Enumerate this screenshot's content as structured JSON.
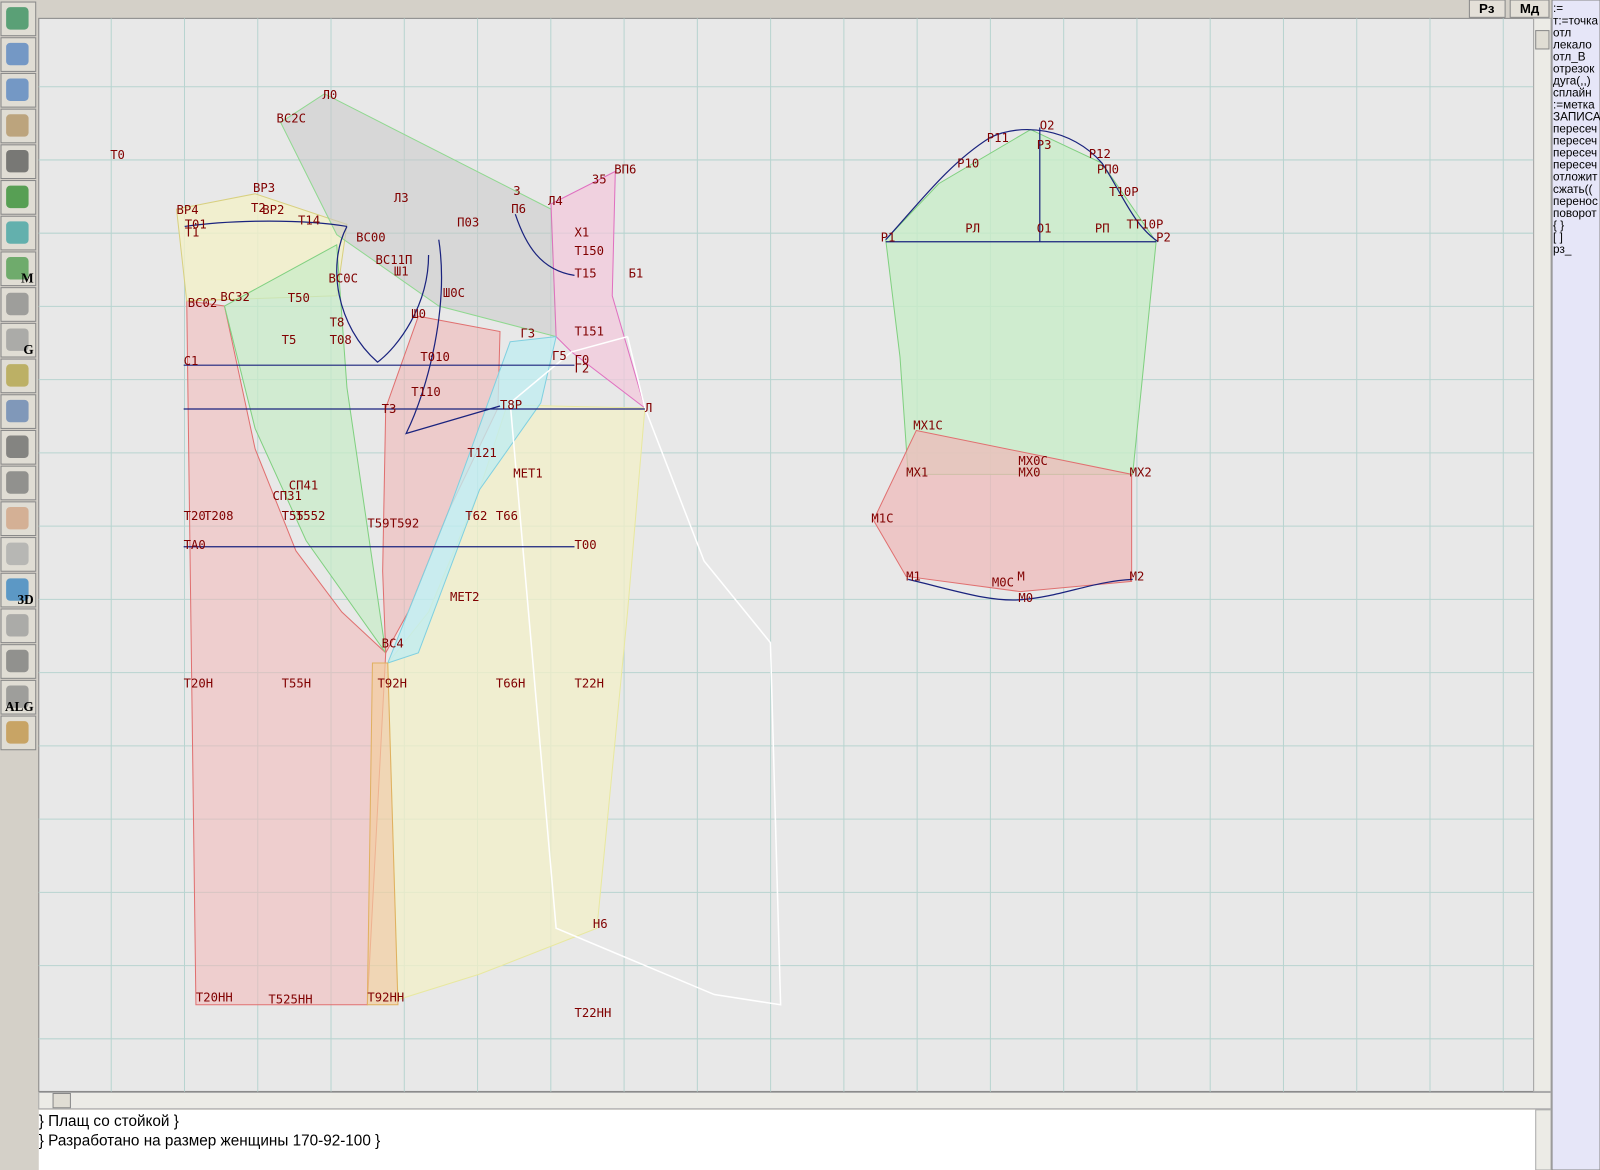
{
  "toolbar": {
    "icon_labels": [
      "M",
      "G",
      "3D",
      "ALG"
    ]
  },
  "top_buttons": [
    "Рз",
    "Мд"
  ],
  "side_panel": {
    "lines": [
      ":=",
      "т:=точка",
      "отл",
      "лекало",
      "отл_В",
      "отрезок",
      "дуга(,,)",
      "сплайн",
      ":=метка",
      "ЗАПИСА",
      "пересеч",
      "пересеч",
      "пересеч",
      "пересеч",
      "отложит",
      "сжать((",
      "перенос",
      "поворот",
      "{ }",
      "[ ]",
      "рз_"
    ]
  },
  "canvas": {
    "labels": [
      "Л0",
      "ВС2С",
      "Т0",
      "Л3",
      "ВР3",
      "ВР4",
      "Т2",
      "ВР2",
      "Т01",
      "Т1",
      "Т14",
      "ВС00",
      "ВС11П",
      "Ш1",
      "ВС0С",
      "ВС02",
      "ВС32",
      "Т50",
      "Т8",
      "Т08",
      "Т5",
      "Ш0",
      "Ш0С",
      "П03",
      "3",
      "П6",
      "Л4",
      "35",
      "ВП6",
      "Т150",
      "Т15",
      "Б1",
      "Х1",
      "Т151",
      "Г3",
      "Г5",
      "Г0",
      "Г2",
      "Т010",
      "Т110",
      "С1",
      "Т3",
      "Т8Р",
      "Л",
      "Т121",
      "МЕТ1",
      "СП41",
      "СП31",
      "Т20",
      "Т208",
      "Т55",
      "Т552",
      "Т59",
      "Т592",
      "Т62",
      "Т66",
      "ТА0",
      "Т00",
      "МЕТ2",
      "ВС4",
      "Т20Н",
      "Т55Н",
      "Т92Н",
      "Т66Н",
      "Т22Н",
      "Н6",
      "Т20НН",
      "Т525НН",
      "Т92НН",
      "Т22НН",
      "О2",
      "Р11",
      "Р3",
      "Р12",
      "Р10",
      "РП0",
      "Т10Р",
      "Р1",
      "РЛ",
      "О1",
      "РП",
      "ТТ10Р",
      "Р2",
      "МХ1С",
      "МХ0С",
      "МХ1",
      "МХ0",
      "МХ2",
      "М1С",
      "М1",
      "М0С",
      "М",
      "М0",
      "М2"
    ]
  },
  "footer": {
    "lines": [
      "} Плащ со стойкой }",
      "} Разработано на размер женщины 170-92-100 }"
    ]
  }
}
